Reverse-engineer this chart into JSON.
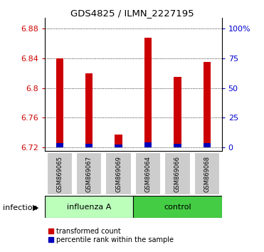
{
  "title": "GDS4825 / ILMN_2227195",
  "samples": [
    "GSM869065",
    "GSM869067",
    "GSM869069",
    "GSM869064",
    "GSM869066",
    "GSM869068"
  ],
  "red_tops": [
    6.84,
    6.82,
    6.737,
    6.868,
    6.815,
    6.835
  ],
  "blue_tops": [
    0.006,
    0.005,
    0.004,
    0.007,
    0.005,
    0.006
  ],
  "bar_base": 6.72,
  "ylim_min": 6.715,
  "ylim_max": 6.895,
  "yticks": [
    6.72,
    6.76,
    6.8,
    6.84,
    6.88
  ],
  "ytick_labels": [
    "6.72",
    "6.76",
    "6.8",
    "6.84",
    "6.88"
  ],
  "right_yticks": [
    0,
    25,
    50,
    75,
    100
  ],
  "ylabel_left_color": "#CC0000",
  "ylabel_right_color": "#0000CC",
  "bar_width": 0.25,
  "red_color": "#CC0000",
  "blue_color": "#0000BB",
  "plot_bg_color": "#FFFFFF",
  "legend_red_label": "transformed count",
  "legend_blue_label": "percentile rank within the sample",
  "infection_label": "infection",
  "influenza_color": "#BBFFBB",
  "control_color": "#44CC44",
  "sample_box_color": "#CCCCCC",
  "n_influenza": 3,
  "n_control": 3,
  "group1_label": "influenza A",
  "group2_label": "control"
}
